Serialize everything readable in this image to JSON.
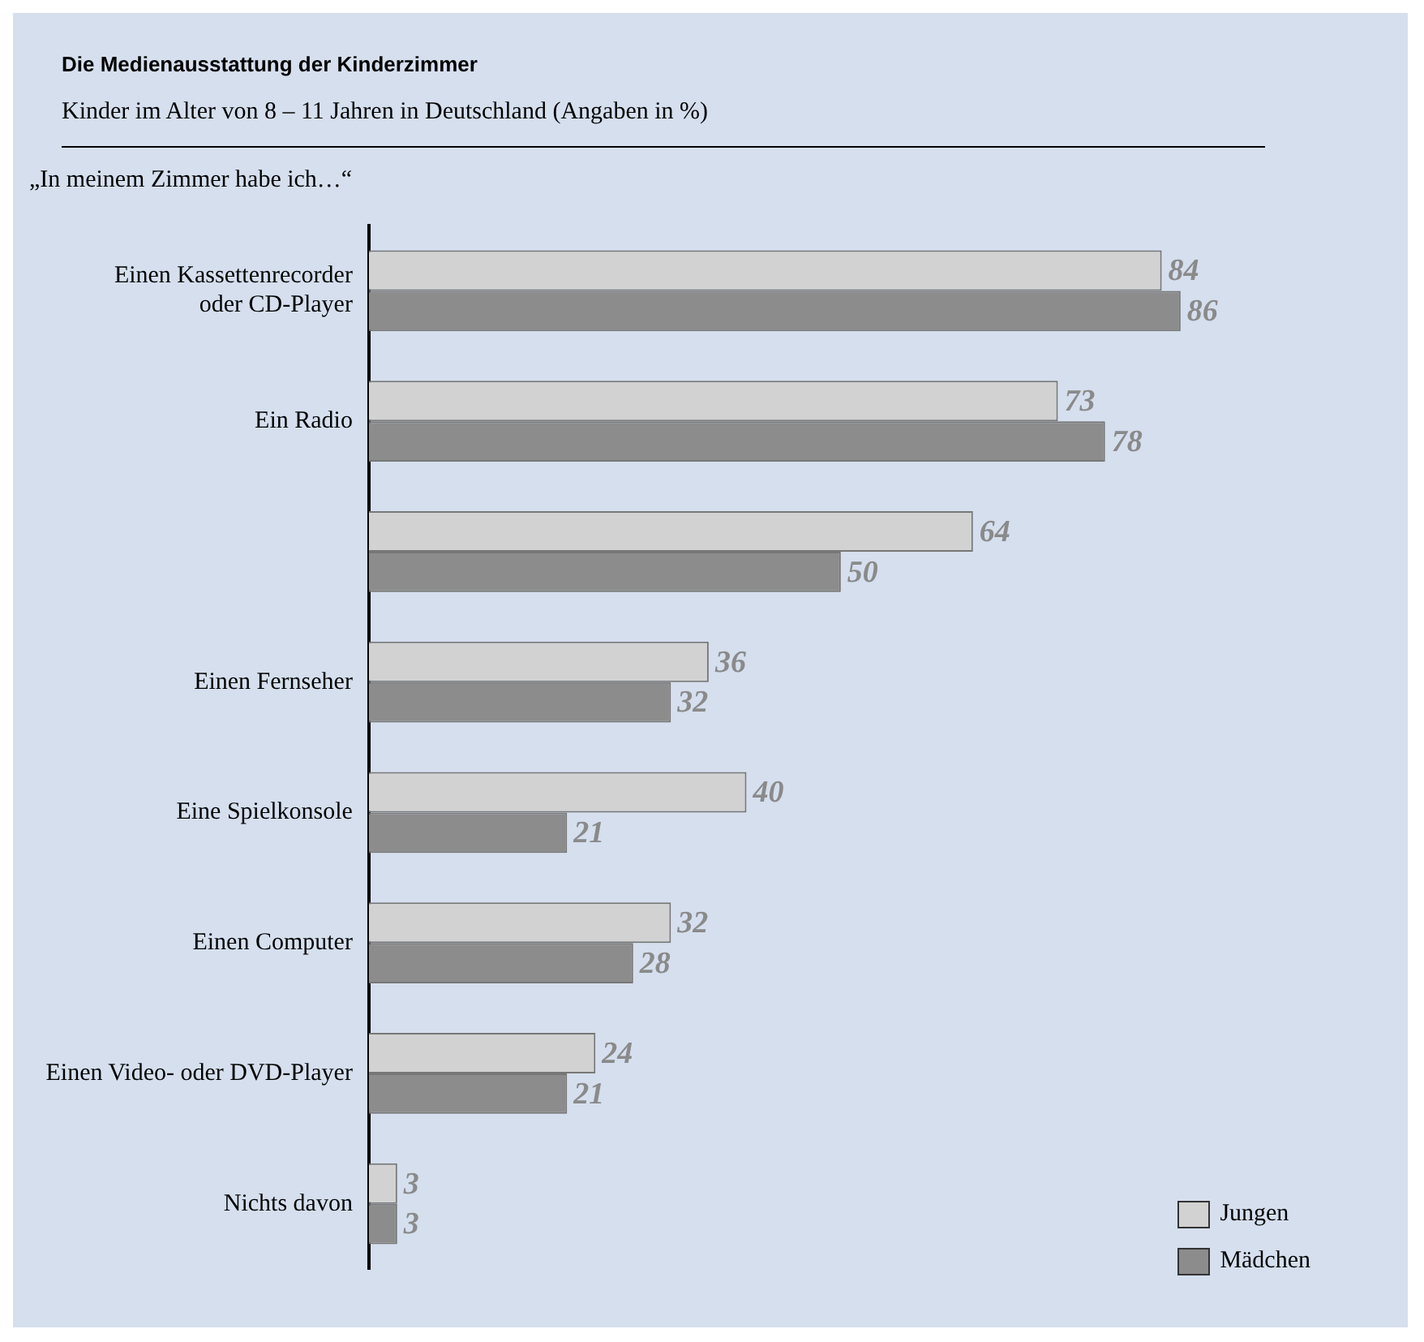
{
  "chart_data": {
    "type": "bar",
    "orientation": "horizontal",
    "title": "Die Medienausstattung der Kinderzimmer",
    "subtitle": "Kinder im Alter von 8 – 11 Jahren in Deutschland (Angaben in %)",
    "annotations": [
      "„In meinem Zimmer habe ich…“"
    ],
    "categories": [
      "Einen Kassettenrecorder oder CD-Player",
      "Ein Radio",
      null,
      "Einen Fernseher",
      "Eine Spielkonsole",
      "Einen Computer",
      "Einen Video- oder DVD-Player",
      "Nichts davon"
    ],
    "series": [
      {
        "name": "Jungen",
        "color": "#d2d2d2",
        "values": [
          84,
          73,
          64,
          36,
          40,
          32,
          24,
          3
        ]
      },
      {
        "name": "Mädchen",
        "color": "#8c8c8c",
        "values": [
          86,
          78,
          50,
          32,
          21,
          28,
          21,
          3
        ]
      }
    ],
    "data_labels": true,
    "legend": "bottom right"
  }
}
